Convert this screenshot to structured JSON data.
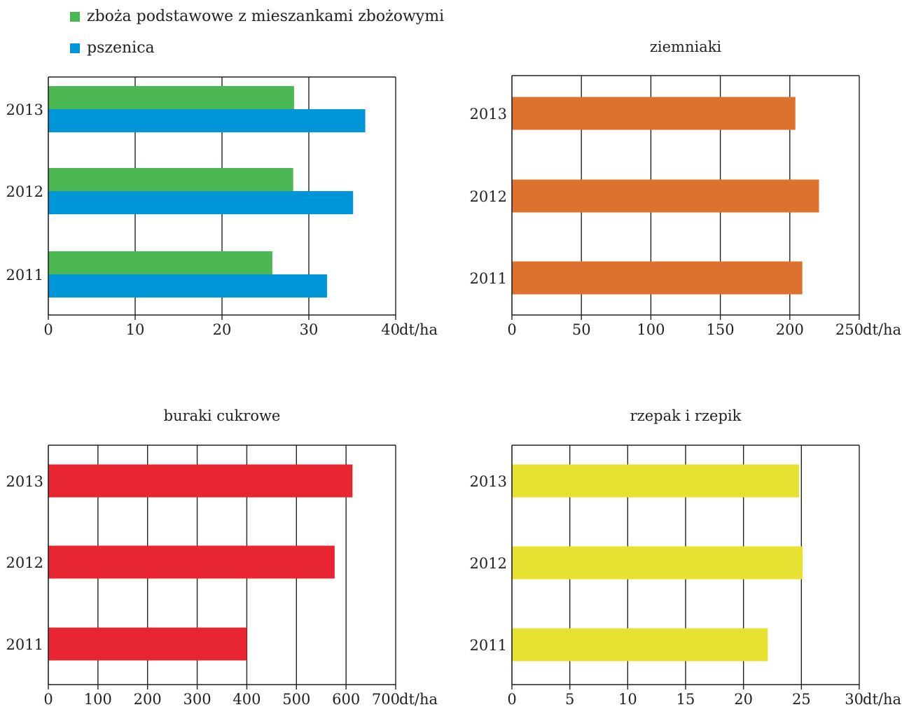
{
  "legend": {
    "items": [
      {
        "label": "zboża podstawowe z mieszankami zbożowymi",
        "color": "#4bb853"
      },
      {
        "label": "pszenica",
        "color": "#0096d9"
      }
    ]
  },
  "chart_data": [
    {
      "type": "bar",
      "orientation": "horizontal",
      "title": "",
      "unit": "dt/ha",
      "categories": [
        "2013",
        "2012",
        "2011"
      ],
      "xlim": [
        0,
        40
      ],
      "ticks": [
        0,
        10,
        20,
        30,
        40
      ],
      "grid": true,
      "series": [
        {
          "name": "zboża podstawowe z mieszankami zbożowymi",
          "color": "#4bb853",
          "values": [
            28.3,
            28.2,
            25.8
          ]
        },
        {
          "name": "pszenica",
          "color": "#0096d9",
          "values": [
            36.5,
            35.1,
            32.1
          ]
        }
      ]
    },
    {
      "type": "bar",
      "orientation": "horizontal",
      "title": "ziemniaki",
      "unit": "dt/ha",
      "categories": [
        "2013",
        "2012",
        "2011"
      ],
      "xlim": [
        0,
        250
      ],
      "ticks": [
        0,
        50,
        100,
        150,
        200,
        250
      ],
      "grid": true,
      "series": [
        {
          "color": "#dd722e",
          "values": [
            204,
            221,
            209
          ]
        }
      ]
    },
    {
      "type": "bar",
      "orientation": "horizontal",
      "title": "buraki cukrowe",
      "unit": "dt/ha",
      "categories": [
        "2013",
        "2012",
        "2011"
      ],
      "xlim": [
        0,
        700
      ],
      "ticks": [
        0,
        100,
        200,
        300,
        400,
        500,
        600,
        700
      ],
      "grid": true,
      "series": [
        {
          "color": "#e82632",
          "values": [
            613,
            577,
            400
          ]
        }
      ]
    },
    {
      "type": "bar",
      "orientation": "horizontal",
      "title": "rzepak i rzepik",
      "unit": "dt/ha",
      "categories": [
        "2013",
        "2012",
        "2011"
      ],
      "xlim": [
        0,
        30
      ],
      "ticks": [
        0,
        5,
        10,
        15,
        20,
        25,
        30
      ],
      "grid": true,
      "series": [
        {
          "color": "#e7e231",
          "values": [
            24.8,
            25.1,
            22.1
          ]
        }
      ]
    }
  ]
}
